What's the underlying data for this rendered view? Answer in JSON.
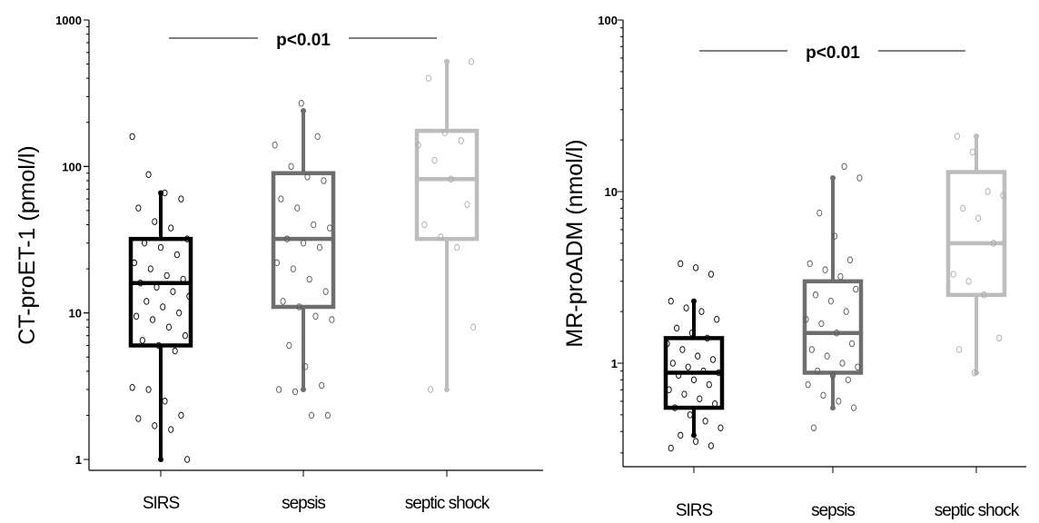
{
  "chart_data": [
    {
      "type": "box",
      "ylabel": "CT-proET-1 (pmol/l)",
      "yscale": "log",
      "ylim": [
        1,
        1000
      ],
      "yticks": [
        "1",
        "10",
        "100",
        "1000"
      ],
      "categories": [
        "SIRS",
        "sepsis",
        "septic shock"
      ],
      "annotation": "p<0.01",
      "colors": [
        "#000000",
        "#6e6e6e",
        "#bdbdbd"
      ],
      "boxes": [
        {
          "whisker_low": 1.0,
          "q1": 6.0,
          "median": 16.0,
          "q3": 32.0,
          "whisker_high": 66.0,
          "points": [
            160,
            88,
            66,
            60,
            52,
            42,
            38,
            32,
            30,
            28,
            25,
            22,
            20,
            18,
            17,
            16,
            15,
            14,
            13,
            12,
            11,
            10,
            9.5,
            9,
            8,
            7,
            6.5,
            6,
            5.5,
            3.1,
            3.0,
            2.5,
            2.0,
            1.9,
            1.7,
            1.6,
            1.0
          ]
        },
        {
          "whisker_low": 3.0,
          "q1": 11.0,
          "median": 32.0,
          "q3": 90.0,
          "whisker_high": 240.0,
          "points": [
            270,
            160,
            140,
            100,
            85,
            80,
            60,
            52,
            40,
            38,
            32,
            30,
            28,
            22,
            20,
            17,
            14,
            12,
            11,
            9.5,
            9,
            6,
            4.3,
            3.2,
            3.0,
            2.9,
            2.0,
            2.0
          ]
        },
        {
          "whisker_low": 3.0,
          "q1": 32.0,
          "median": 82.0,
          "q3": 175.0,
          "whisker_high": 520.0,
          "points": [
            520,
            400,
            170,
            150,
            140,
            110,
            82,
            55,
            40,
            33,
            28,
            8,
            3.0
          ]
        }
      ]
    },
    {
      "type": "box",
      "ylabel": "MR-proADM (nmol/l)",
      "yscale": "log",
      "ylim": [
        0.28,
        100
      ],
      "yticks": [
        "1",
        "10",
        "100"
      ],
      "categories": [
        "SIRS",
        "sepsis",
        "septic shock"
      ],
      "annotation": "p<0.01",
      "colors": [
        "#000000",
        "#6e6e6e",
        "#bdbdbd"
      ],
      "boxes": [
        {
          "whisker_low": 0.38,
          "q1": 0.55,
          "median": 0.88,
          "q3": 1.4,
          "whisker_high": 2.3,
          "points": [
            3.8,
            3.6,
            3.3,
            2.3,
            2.1,
            2.0,
            1.8,
            1.6,
            1.5,
            1.4,
            1.3,
            1.2,
            1.1,
            1.05,
            1.0,
            0.95,
            0.9,
            0.88,
            0.85,
            0.8,
            0.75,
            0.7,
            0.66,
            0.62,
            0.58,
            0.55,
            0.5,
            0.46,
            0.42,
            0.38,
            0.35,
            0.33,
            0.32
          ]
        },
        {
          "whisker_low": 0.55,
          "q1": 0.88,
          "median": 1.5,
          "q3": 3.0,
          "whisker_high": 12.0,
          "points": [
            14,
            12,
            7.5,
            5.5,
            4.0,
            3.8,
            3.5,
            3.2,
            2.7,
            2.5,
            2.3,
            2.0,
            1.8,
            1.7,
            1.5,
            1.3,
            1.2,
            1.1,
            1.0,
            0.95,
            0.9,
            0.85,
            0.8,
            0.75,
            0.65,
            0.6,
            0.55,
            0.42
          ]
        },
        {
          "whisker_low": 0.88,
          "q1": 2.5,
          "median": 5.0,
          "q3": 13.0,
          "whisker_high": 21.0,
          "points": [
            21,
            17,
            10,
            9.5,
            8.0,
            7.0,
            5.0,
            3.3,
            3.0,
            2.5,
            1.4,
            1.2,
            0.88
          ]
        }
      ]
    }
  ]
}
